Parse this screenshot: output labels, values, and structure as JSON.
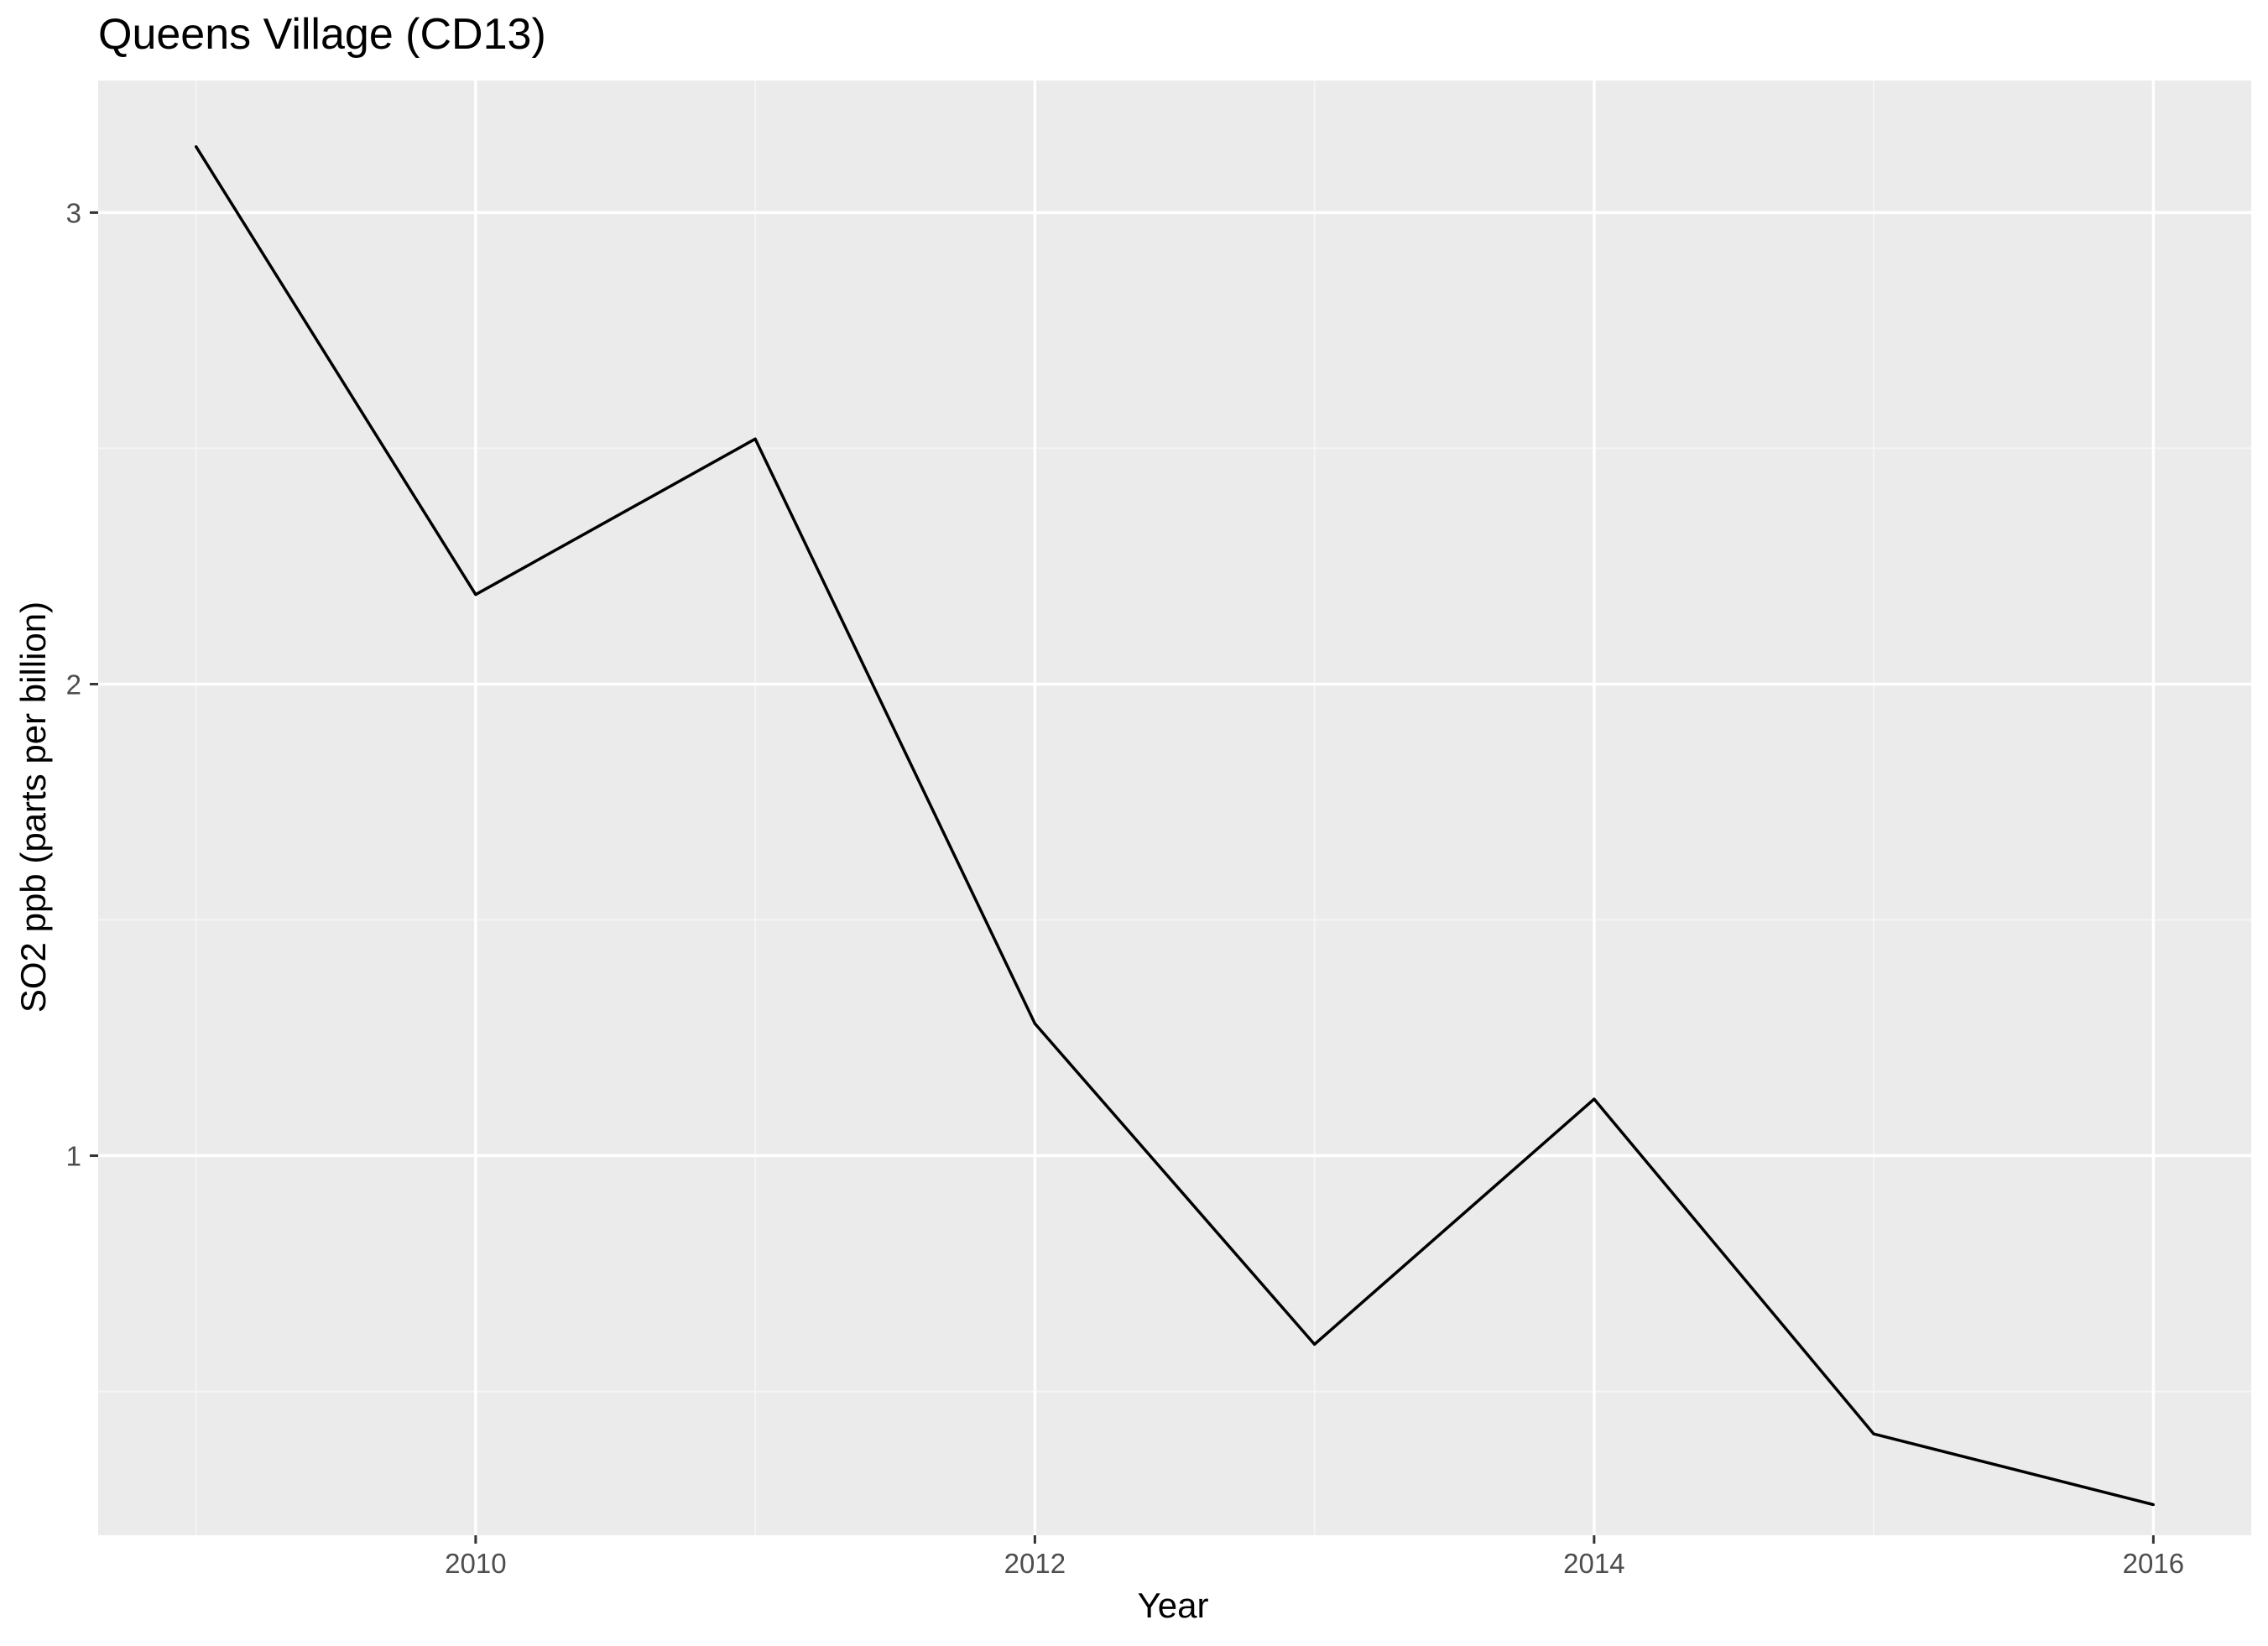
{
  "chart_data": {
    "type": "line",
    "title": "Queens Village (CD13)",
    "xlabel": "Year",
    "ylabel": "SO2 ppb (parts per billion)",
    "x": [
      2009,
      2010,
      2011,
      2012,
      2013,
      2014,
      2015,
      2016
    ],
    "series": [
      {
        "values": [
          3.14,
          2.19,
          2.52,
          1.28,
          0.6,
          1.12,
          0.41,
          0.26
        ]
      }
    ],
    "xlim": [
      2008.65,
      2016.35
    ],
    "ylim": [
      0.195,
      3.28
    ],
    "x_ticks": [
      "2010",
      "2012",
      "2014",
      "2016"
    ],
    "y_ticks": [
      "1",
      "2",
      "3"
    ],
    "grid": true,
    "colors": {
      "panel_background": "#ebebeb",
      "grid_major": "#ffffff",
      "grid_minor": "#f5f5f5",
      "line": "#000000",
      "tick_mark": "#333333",
      "tick_label": "#4d4d4d"
    }
  }
}
